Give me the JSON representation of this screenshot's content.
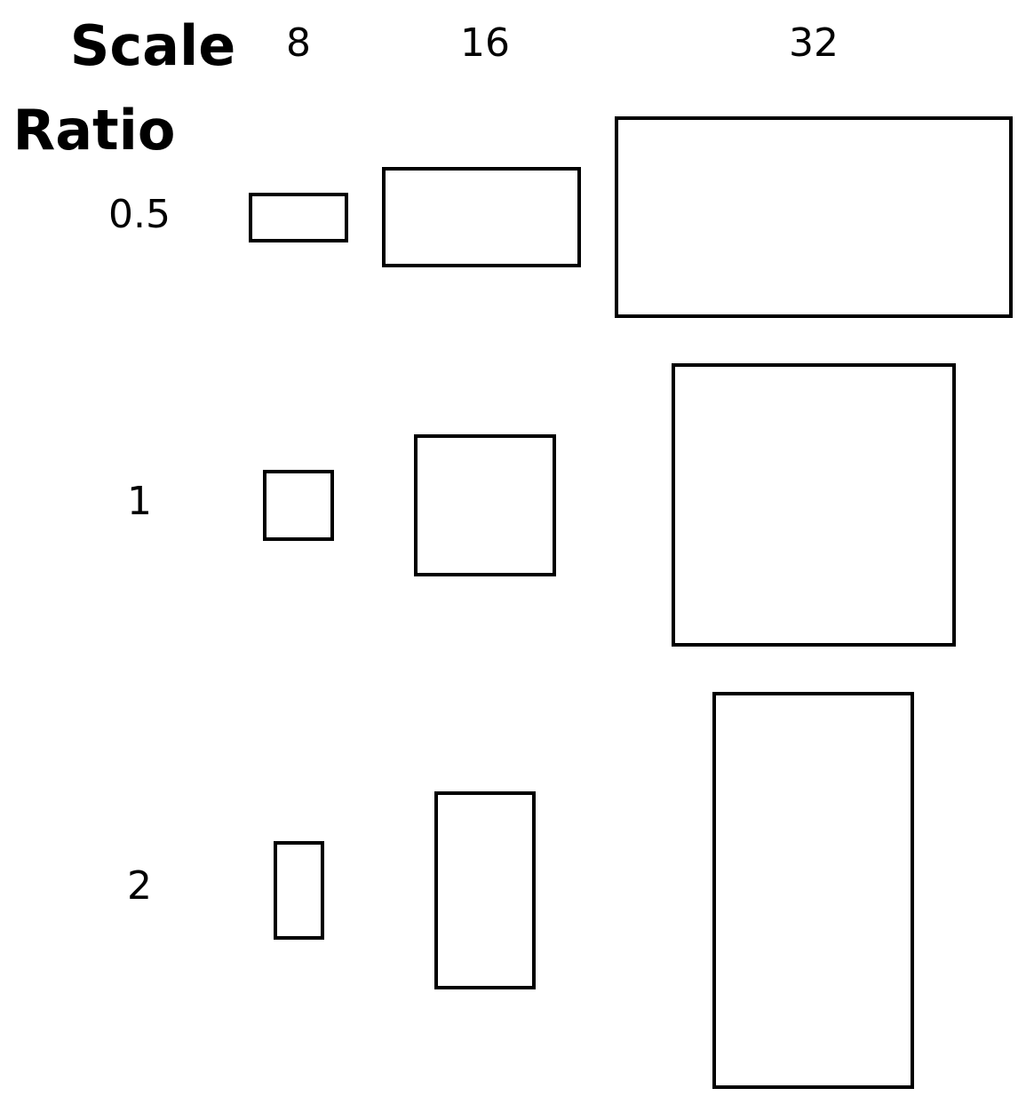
{
  "diagram": {
    "scale_title": "Scale",
    "ratio_title": "Ratio",
    "scales": [
      "8",
      "16",
      "32"
    ],
    "ratios": [
      "0.5",
      "1",
      "2"
    ],
    "stroke_color": "#000000",
    "background_color": "#ffffff"
  }
}
